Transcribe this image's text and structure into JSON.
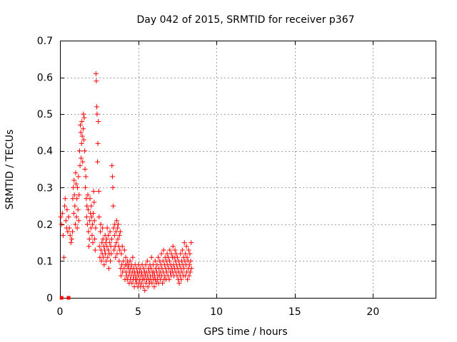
{
  "chart_data": {
    "type": "scatter",
    "title": "Day 042 of 2015, SRMTID for receiver p367",
    "xlabel": "GPS time / hours",
    "ylabel": "SRMTID / TECUs",
    "xlim": [
      0,
      24
    ],
    "ylim": [
      0,
      0.7
    ],
    "xticks": [
      "0",
      "5",
      "10",
      "15",
      "20"
    ],
    "yticks": [
      "0",
      "0.1",
      "0.2",
      "0.3",
      "0.4",
      "0.5",
      "0.6",
      "0.7"
    ],
    "grid": true,
    "marker": "+",
    "color": "#ff0000",
    "series": [
      {
        "name": "SRMTID",
        "points": [
          [
            0.05,
            0.22
          ],
          [
            0.1,
            0.2
          ],
          [
            0.15,
            0.23
          ],
          [
            0.2,
            0.17
          ],
          [
            0.25,
            0.11
          ],
          [
            0.3,
            0.25
          ],
          [
            0.33,
            0.27
          ],
          [
            0.38,
            0.21
          ],
          [
            0.42,
            0.19
          ],
          [
            0.45,
            0.24
          ],
          [
            0.5,
            0.18
          ],
          [
            0.55,
            0.22
          ],
          [
            0.6,
            0.19
          ],
          [
            0.65,
            0.17
          ],
          [
            0.7,
            0.15
          ],
          [
            0.75,
            0.16
          ],
          [
            0.8,
            0.18
          ],
          [
            0.82,
            0.27
          ],
          [
            0.85,
            0.3
          ],
          [
            0.88,
            0.23
          ],
          [
            0.9,
            0.32
          ],
          [
            0.92,
            0.28
          ],
          [
            0.95,
            0.25
          ],
          [
            0.98,
            0.2
          ],
          [
            1.0,
            0.34
          ],
          [
            1.03,
            0.31
          ],
          [
            1.05,
            0.22
          ],
          [
            1.08,
            0.27
          ],
          [
            1.1,
            0.19
          ],
          [
            1.12,
            0.3
          ],
          [
            1.15,
            0.24
          ],
          [
            1.18,
            0.33
          ],
          [
            1.2,
            0.21
          ],
          [
            1.22,
            0.28
          ],
          [
            1.25,
            0.4
          ],
          [
            1.28,
            0.36
          ],
          [
            1.3,
            0.47
          ],
          [
            1.33,
            0.45
          ],
          [
            1.35,
            0.38
          ],
          [
            1.38,
            0.42
          ],
          [
            1.4,
            0.48
          ],
          [
            1.42,
            0.44
          ],
          [
            1.45,
            0.37
          ],
          [
            1.48,
            0.46
          ],
          [
            1.5,
            0.5
          ],
          [
            1.52,
            0.43
          ],
          [
            1.55,
            0.49
          ],
          [
            1.58,
            0.4
          ],
          [
            1.6,
            0.35
          ],
          [
            1.62,
            0.3
          ],
          [
            1.65,
            0.33
          ],
          [
            1.68,
            0.27
          ],
          [
            1.7,
            0.22
          ],
          [
            1.72,
            0.25
          ],
          [
            1.75,
            0.2
          ],
          [
            1.78,
            0.28
          ],
          [
            1.8,
            0.24
          ],
          [
            1.82,
            0.18
          ],
          [
            1.85,
            0.14
          ],
          [
            1.88,
            0.16
          ],
          [
            1.9,
            0.21
          ],
          [
            1.92,
            0.27
          ],
          [
            1.95,
            0.23
          ],
          [
            1.98,
            0.19
          ],
          [
            2.0,
            0.25
          ],
          [
            2.02,
            0.22
          ],
          [
            2.05,
            0.17
          ],
          [
            2.08,
            0.2
          ],
          [
            2.1,
            0.15
          ],
          [
            2.12,
            0.23
          ],
          [
            2.15,
            0.29
          ],
          [
            2.18,
            0.26
          ],
          [
            2.2,
            0.21
          ],
          [
            2.22,
            0.16
          ],
          [
            2.25,
            0.13
          ],
          [
            2.28,
            0.19
          ],
          [
            2.3,
            0.61
          ],
          [
            2.32,
            0.59
          ],
          [
            2.35,
            0.52
          ],
          [
            2.37,
            0.5
          ],
          [
            2.4,
            0.37
          ],
          [
            2.42,
            0.42
          ],
          [
            2.45,
            0.48
          ],
          [
            2.48,
            0.29
          ],
          [
            2.5,
            0.22
          ],
          [
            2.52,
            0.14
          ],
          [
            2.55,
            0.11
          ],
          [
            2.58,
            0.18
          ],
          [
            2.6,
            0.2
          ],
          [
            2.62,
            0.13
          ],
          [
            2.65,
            0.1
          ],
          [
            2.68,
            0.15
          ],
          [
            2.7,
            0.12
          ],
          [
            2.72,
            0.19
          ],
          [
            2.75,
            0.16
          ],
          [
            2.78,
            0.11
          ],
          [
            2.8,
            0.14
          ],
          [
            2.82,
            0.09
          ],
          [
            2.85,
            0.13
          ],
          [
            2.88,
            0.17
          ],
          [
            2.9,
            0.12
          ],
          [
            2.92,
            0.15
          ],
          [
            2.95,
            0.1
          ],
          [
            2.98,
            0.16
          ],
          [
            3.0,
            0.14
          ],
          [
            3.02,
            0.19
          ],
          [
            3.05,
            0.11
          ],
          [
            3.08,
            0.13
          ],
          [
            3.1,
            0.17
          ],
          [
            3.12,
            0.08
          ],
          [
            3.15,
            0.12
          ],
          [
            3.18,
            0.15
          ],
          [
            3.2,
            0.18
          ],
          [
            3.22,
            0.1
          ],
          [
            3.25,
            0.14
          ],
          [
            3.28,
            0.12
          ],
          [
            3.3,
            0.16
          ],
          [
            3.32,
            0.36
          ],
          [
            3.35,
            0.33
          ],
          [
            3.38,
            0.3
          ],
          [
            3.4,
            0.25
          ],
          [
            3.42,
            0.19
          ],
          [
            3.45,
            0.13
          ],
          [
            3.48,
            0.17
          ],
          [
            3.5,
            0.2
          ],
          [
            3.52,
            0.14
          ],
          [
            3.55,
            0.11
          ],
          [
            3.58,
            0.18
          ],
          [
            3.6,
            0.15
          ],
          [
            3.62,
            0.21
          ],
          [
            3.65,
            0.12
          ],
          [
            3.68,
            0.19
          ],
          [
            3.7,
            0.16
          ],
          [
            3.72,
            0.2
          ],
          [
            3.75,
            0.14
          ],
          [
            3.78,
            0.1
          ],
          [
            3.8,
            0.17
          ],
          [
            3.82,
            0.13
          ],
          [
            3.85,
            0.18
          ],
          [
            3.88,
            0.08
          ],
          [
            3.9,
            0.06
          ],
          [
            3.92,
            0.12
          ],
          [
            3.95,
            0.09
          ],
          [
            3.98,
            0.14
          ],
          [
            4.0,
            0.07
          ],
          [
            4.05,
            0.1
          ],
          [
            4.1,
            0.08
          ],
          [
            4.12,
            0.13
          ],
          [
            4.15,
            0.05
          ],
          [
            4.18,
            0.09
          ],
          [
            4.2,
            0.11
          ],
          [
            4.22,
            0.07
          ],
          [
            4.25,
            0.06
          ],
          [
            4.28,
            0.09
          ],
          [
            4.3,
            0.05
          ],
          [
            4.32,
            0.1
          ],
          [
            4.35,
            0.08
          ],
          [
            4.38,
            0.06
          ],
          [
            4.4,
            0.09
          ],
          [
            4.42,
            0.04
          ],
          [
            4.45,
            0.07
          ],
          [
            4.48,
            0.1
          ],
          [
            4.5,
            0.05
          ],
          [
            4.52,
            0.08
          ],
          [
            4.55,
            0.06
          ],
          [
            4.58,
            0.09
          ],
          [
            4.6,
            0.04
          ],
          [
            4.62,
            0.07
          ],
          [
            4.65,
            0.11
          ],
          [
            4.68,
            0.05
          ],
          [
            4.7,
            0.08
          ],
          [
            4.72,
            0.06
          ],
          [
            4.75,
            0.03
          ],
          [
            4.78,
            0.07
          ],
          [
            4.8,
            0.09
          ],
          [
            4.82,
            0.05
          ],
          [
            4.85,
            0.06
          ],
          [
            4.88,
            0.04
          ],
          [
            4.9,
            0.08
          ],
          [
            4.92,
            0.05
          ],
          [
            4.95,
            0.07
          ],
          [
            4.98,
            0.03
          ],
          [
            5.0,
            0.06
          ],
          [
            5.02,
            0.09
          ],
          [
            5.05,
            0.04
          ],
          [
            5.08,
            0.07
          ],
          [
            5.1,
            0.05
          ],
          [
            5.12,
            0.08
          ],
          [
            5.15,
            0.03
          ],
          [
            5.18,
            0.06
          ],
          [
            5.2,
            0.04
          ],
          [
            5.22,
            0.07
          ],
          [
            5.25,
            0.09
          ],
          [
            5.28,
            0.05
          ],
          [
            5.3,
            0.06
          ],
          [
            5.32,
            0.03
          ],
          [
            5.35,
            0.08
          ],
          [
            5.38,
            0.05
          ],
          [
            5.4,
            0.07
          ],
          [
            5.42,
            0.02
          ],
          [
            5.45,
            0.06
          ],
          [
            5.48,
            0.09
          ],
          [
            5.5,
            0.04
          ],
          [
            5.52,
            0.07
          ],
          [
            5.55,
            0.05
          ],
          [
            5.58,
            0.1
          ],
          [
            5.6,
            0.06
          ],
          [
            5.62,
            0.03
          ],
          [
            5.65,
            0.08
          ],
          [
            5.68,
            0.05
          ],
          [
            5.7,
            0.07
          ],
          [
            5.72,
            0.04
          ],
          [
            5.75,
            0.09
          ],
          [
            5.78,
            0.06
          ],
          [
            5.8,
            0.05
          ],
          [
            5.82,
            0.08
          ],
          [
            5.85,
            0.11
          ],
          [
            5.88,
            0.04
          ],
          [
            5.9,
            0.07
          ],
          [
            5.92,
            0.06
          ],
          [
            5.95,
            0.09
          ],
          [
            5.98,
            0.05
          ],
          [
            6.0,
            0.07
          ],
          [
            6.02,
            0.03
          ],
          [
            6.05,
            0.06
          ],
          [
            6.08,
            0.1
          ],
          [
            6.1,
            0.05
          ],
          [
            6.12,
            0.08
          ],
          [
            6.15,
            0.04
          ],
          [
            6.18,
            0.07
          ],
          [
            6.2,
            0.09
          ],
          [
            6.22,
            0.05
          ],
          [
            6.25,
            0.06
          ],
          [
            6.28,
            0.11
          ],
          [
            6.3,
            0.04
          ],
          [
            6.32,
            0.08
          ],
          [
            6.35,
            0.06
          ],
          [
            6.38,
            0.1
          ],
          [
            6.4,
            0.07
          ],
          [
            6.42,
            0.05
          ],
          [
            6.45,
            0.09
          ],
          [
            6.48,
            0.12
          ],
          [
            6.5,
            0.06
          ],
          [
            6.52,
            0.08
          ],
          [
            6.55,
            0.04
          ],
          [
            6.58,
            0.1
          ],
          [
            6.6,
            0.07
          ],
          [
            6.62,
            0.13
          ],
          [
            6.65,
            0.05
          ],
          [
            6.68,
            0.09
          ],
          [
            6.7,
            0.06
          ],
          [
            6.72,
            0.11
          ],
          [
            6.75,
            0.08
          ],
          [
            6.78,
            0.05
          ],
          [
            6.8,
            0.1
          ],
          [
            6.82,
            0.07
          ],
          [
            6.85,
            0.12
          ],
          [
            6.88,
            0.09
          ],
          [
            6.9,
            0.06
          ],
          [
            6.92,
            0.11
          ],
          [
            6.95,
            0.08
          ],
          [
            6.98,
            0.05
          ],
          [
            7.0,
            0.1
          ],
          [
            7.02,
            0.13
          ],
          [
            7.05,
            0.07
          ],
          [
            7.08,
            0.09
          ],
          [
            7.1,
            0.06
          ],
          [
            7.12,
            0.12
          ],
          [
            7.15,
            0.08
          ],
          [
            7.18,
            0.11
          ],
          [
            7.2,
            0.07
          ],
          [
            7.22,
            0.14
          ],
          [
            7.25,
            0.09
          ],
          [
            7.28,
            0.06
          ],
          [
            7.3,
            0.11
          ],
          [
            7.32,
            0.08
          ],
          [
            7.35,
            0.13
          ],
          [
            7.38,
            0.1
          ],
          [
            7.4,
            0.07
          ],
          [
            7.42,
            0.12
          ],
          [
            7.45,
            0.09
          ],
          [
            7.48,
            0.06
          ],
          [
            7.5,
            0.11
          ],
          [
            7.52,
            0.08
          ],
          [
            7.55,
            0.05
          ],
          [
            7.58,
            0.1
          ],
          [
            7.6,
            0.07
          ],
          [
            7.62,
            0.04
          ],
          [
            7.65,
            0.09
          ],
          [
            7.68,
            0.06
          ],
          [
            7.7,
            0.12
          ],
          [
            7.72,
            0.08
          ],
          [
            7.75,
            0.05
          ],
          [
            7.78,
            0.1
          ],
          [
            7.8,
            0.07
          ],
          [
            7.82,
            0.13
          ],
          [
            7.85,
            0.09
          ],
          [
            7.88,
            0.06
          ],
          [
            7.9,
            0.11
          ],
          [
            7.92,
            0.08
          ],
          [
            7.95,
            0.15
          ],
          [
            7.98,
            0.1
          ],
          [
            8.0,
            0.06
          ],
          [
            8.02,
            0.12
          ],
          [
            8.05,
            0.09
          ],
          [
            8.08,
            0.14
          ],
          [
            8.1,
            0.07
          ],
          [
            8.12,
            0.11
          ],
          [
            8.15,
            0.05
          ],
          [
            8.18,
            0.1
          ],
          [
            8.2,
            0.08
          ],
          [
            8.22,
            0.13
          ],
          [
            8.25,
            0.06
          ],
          [
            8.28,
            0.09
          ],
          [
            8.3,
            0.12
          ],
          [
            8.32,
            0.07
          ],
          [
            8.35,
            0.1
          ],
          [
            8.38,
            0.15
          ],
          [
            8.4,
            0.08
          ]
        ]
      }
    ],
    "zero_points": [
      0.1,
      0.55
    ]
  }
}
